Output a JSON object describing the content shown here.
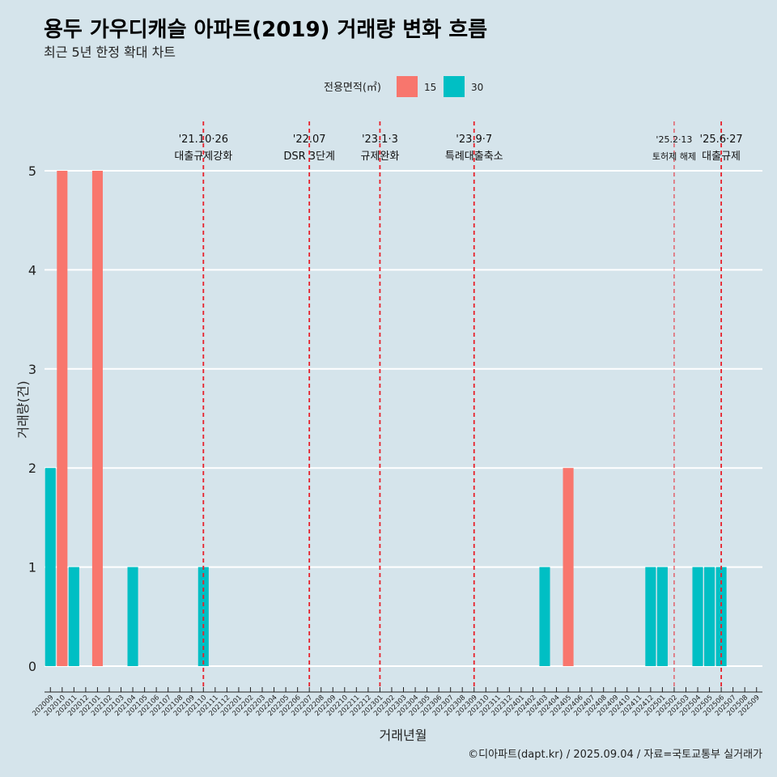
{
  "chart_data": {
    "type": "bar",
    "title": "용두 가우디캐슬 아파트(2019) 거래량 변화 흐름",
    "subtitle": "최근 5년 한정 확대 차트",
    "xlabel": "거래년월",
    "ylabel": "거래량(건)",
    "ylim": [
      0,
      5
    ],
    "yticks": [
      "0",
      "1",
      "2",
      "3",
      "4",
      "5"
    ],
    "legend_title": "전용면적(㎡)",
    "legend_position": "top",
    "grid": true,
    "categories": [
      "202009",
      "202010",
      "202011",
      "202012",
      "202101",
      "202102",
      "202103",
      "202104",
      "202105",
      "202106",
      "202107",
      "202108",
      "202109",
      "202110",
      "202111",
      "202112",
      "202201",
      "202202",
      "202203",
      "202204",
      "202205",
      "202206",
      "202207",
      "202208",
      "202209",
      "202210",
      "202211",
      "202212",
      "202301",
      "202302",
      "202303",
      "202304",
      "202305",
      "202306",
      "202307",
      "202308",
      "202309",
      "202310",
      "202311",
      "202312",
      "202401",
      "202402",
      "202403",
      "202404",
      "202405",
      "202406",
      "202407",
      "202408",
      "202409",
      "202410",
      "202411",
      "202412",
      "202501",
      "202502",
      "202503",
      "202504",
      "202505",
      "202506",
      "202507",
      "202508",
      "202509"
    ],
    "series": [
      {
        "name": "15",
        "color": "#f8766d",
        "values": [
          0,
          5,
          0,
          0,
          5,
          0,
          0,
          0,
          0,
          0,
          0,
          0,
          0,
          0,
          0,
          0,
          0,
          0,
          0,
          0,
          0,
          0,
          0,
          0,
          0,
          0,
          0,
          0,
          0,
          0,
          0,
          0,
          0,
          0,
          0,
          0,
          0,
          0,
          0,
          0,
          0,
          0,
          0,
          0,
          2,
          0,
          0,
          0,
          0,
          0,
          0,
          0,
          0,
          0,
          0,
          0,
          0,
          0,
          0,
          0,
          0
        ]
      },
      {
        "name": "30",
        "color": "#00bfc4",
        "values": [
          2,
          0,
          1,
          0,
          0,
          0,
          0,
          1,
          0,
          0,
          0,
          0,
          0,
          1,
          0,
          0,
          0,
          0,
          0,
          0,
          0,
          0,
          0,
          0,
          0,
          0,
          0,
          0,
          0,
          0,
          0,
          0,
          0,
          0,
          0,
          0,
          0,
          0,
          0,
          0,
          0,
          0,
          1,
          0,
          0,
          0,
          0,
          0,
          0,
          0,
          0,
          1,
          1,
          0,
          0,
          1,
          1,
          1,
          0,
          0,
          0
        ]
      }
    ],
    "annotations": [
      {
        "date": "202110",
        "label1": "'21.10·26",
        "label2": "대출규제강화",
        "style": "bold"
      },
      {
        "date": "202207",
        "label1": "'22.07",
        "label2": "DSR 3단계",
        "style": "bold"
      },
      {
        "date": "202301",
        "label1": "'23.1·3",
        "label2": "규제완화",
        "style": "bold"
      },
      {
        "date": "202309",
        "label1": "'23.9·7",
        "label2": "특례대출축소",
        "style": "bold"
      },
      {
        "date": "202502",
        "label1": "'25.2·13",
        "label2": "토허제 해제",
        "style": "thin"
      },
      {
        "date": "202506",
        "label1": "'25.6·27",
        "label2": "대출규제",
        "style": "bold"
      }
    ]
  },
  "caption": "©디아파트(dapt.kr) / 2025.09.04 / 자료=국토교통부 실거래가"
}
